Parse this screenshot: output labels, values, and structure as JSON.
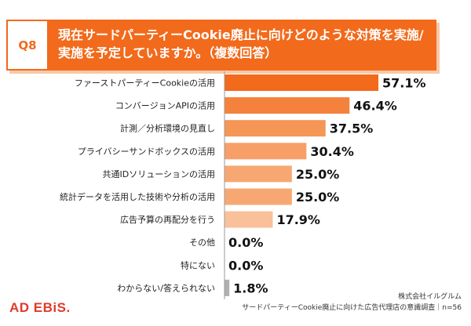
{
  "header": {
    "badge": "Q8",
    "question": "現在サードパーティーCookie廃止に向けどのような対策を実施/実施を予定していますか。（複数回答）"
  },
  "logo": "AD EBiS.",
  "source": {
    "company": "株式会社イルグルム",
    "survey": "サードパーティーCookie廃止に向けた広告代理店の意識調査｜n=56"
  },
  "chart_data": {
    "type": "bar",
    "orientation": "horizontal",
    "categories": [
      "ファーストパーティーCookieの活用",
      "コンバージョンAPIの活用",
      "計測／分析環境の見直し",
      "プライバシーサンドボックスの活用",
      "共通IDソリューションの活用",
      "統計データを活用した技術や分析の活用",
      "広告予算の再配分を行う",
      "その他",
      "特にない",
      "わからない/答えられない"
    ],
    "values": [
      57.1,
      46.4,
      37.5,
      30.4,
      25.0,
      25.0,
      17.9,
      0.0,
      0.0,
      1.8
    ],
    "value_labels": [
      "57.1%",
      "46.4%",
      "37.5%",
      "30.4%",
      "25.0%",
      "25.0%",
      "17.9%",
      "0.0%",
      "0.0%",
      "1.8%"
    ],
    "colors": [
      "#f26a1b",
      "#f4823c",
      "#f59556",
      "#f6a068",
      "#f7a872",
      "#f7a872",
      "#f9c09a",
      "#f9c09a",
      "#f9c09a",
      "#b0b0b0"
    ],
    "xlim": [
      0,
      60
    ],
    "grid": false
  }
}
